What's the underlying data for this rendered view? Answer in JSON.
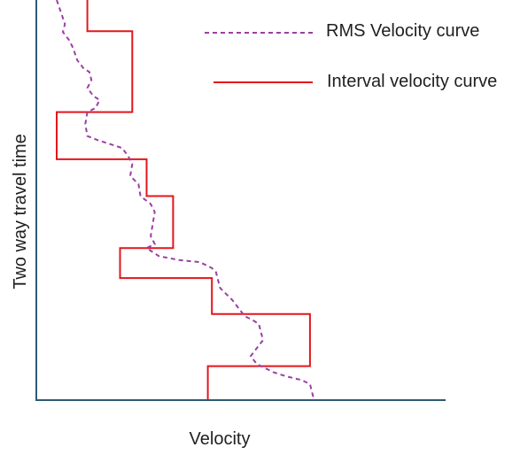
{
  "chart_data": {
    "type": "line",
    "title": "",
    "xlabel": "Velocity",
    "ylabel": "Two way travel time",
    "xlim": [
      0,
      100
    ],
    "ylim": [
      0,
      100
    ],
    "y_inverted": true,
    "ticks_shown": false,
    "grid": false,
    "legend_position": "top-right",
    "axis_color": "#2e5a72",
    "series": [
      {
        "name": "RMS Velocity curve",
        "style": "dashed",
        "color": "#9b3fa3",
        "points": [
          {
            "x": 5,
            "y": 0
          },
          {
            "x": 6,
            "y": 3
          },
          {
            "x": 7,
            "y": 6
          },
          {
            "x": 6.5,
            "y": 8
          },
          {
            "x": 8,
            "y": 10
          },
          {
            "x": 9,
            "y": 12
          },
          {
            "x": 10,
            "y": 15
          },
          {
            "x": 11.5,
            "y": 17
          },
          {
            "x": 13,
            "y": 18
          },
          {
            "x": 13.5,
            "y": 20
          },
          {
            "x": 12.5,
            "y": 22
          },
          {
            "x": 14,
            "y": 24
          },
          {
            "x": 15.5,
            "y": 25
          },
          {
            "x": 14.5,
            "y": 27
          },
          {
            "x": 12.5,
            "y": 28
          },
          {
            "x": 12,
            "y": 31
          },
          {
            "x": 12.5,
            "y": 34
          },
          {
            "x": 15,
            "y": 35
          },
          {
            "x": 18,
            "y": 36
          },
          {
            "x": 21,
            "y": 37
          },
          {
            "x": 22.5,
            "y": 39
          },
          {
            "x": 23.5,
            "y": 41
          },
          {
            "x": 23,
            "y": 44
          },
          {
            "x": 25,
            "y": 46
          },
          {
            "x": 25.5,
            "y": 49
          },
          {
            "x": 28,
            "y": 51
          },
          {
            "x": 29,
            "y": 53
          },
          {
            "x": 28.5,
            "y": 56
          },
          {
            "x": 28,
            "y": 59
          },
          {
            "x": 29,
            "y": 61
          },
          {
            "x": 27,
            "y": 62
          },
          {
            "x": 30,
            "y": 64
          },
          {
            "x": 35,
            "y": 65
          },
          {
            "x": 40,
            "y": 65.5
          },
          {
            "x": 43,
            "y": 67
          },
          {
            "x": 44,
            "y": 68
          },
          {
            "x": 44.5,
            "y": 70
          },
          {
            "x": 45,
            "y": 72
          },
          {
            "x": 48,
            "y": 75
          },
          {
            "x": 49.5,
            "y": 77
          },
          {
            "x": 51,
            "y": 79
          },
          {
            "x": 53,
            "y": 80
          },
          {
            "x": 54.5,
            "y": 81
          },
          {
            "x": 55,
            "y": 83
          },
          {
            "x": 55.5,
            "y": 85
          },
          {
            "x": 54,
            "y": 87
          },
          {
            "x": 52.5,
            "y": 89
          },
          {
            "x": 54,
            "y": 91
          },
          {
            "x": 56,
            "y": 92
          },
          {
            "x": 58,
            "y": 93
          },
          {
            "x": 61,
            "y": 94
          },
          {
            "x": 65,
            "y": 95
          },
          {
            "x": 67,
            "y": 96
          },
          {
            "x": 67.5,
            "y": 98
          },
          {
            "x": 68,
            "y": 100
          }
        ]
      },
      {
        "name": "Interval velocity curve",
        "style": "solid",
        "color": "#e3161c",
        "points": [
          {
            "x": 12.5,
            "y": 0
          },
          {
            "x": 12.5,
            "y": 7.8
          },
          {
            "x": 23.5,
            "y": 7.8
          },
          {
            "x": 23.5,
            "y": 28
          },
          {
            "x": 5,
            "y": 28
          },
          {
            "x": 5,
            "y": 39.8
          },
          {
            "x": 27,
            "y": 39.8
          },
          {
            "x": 27,
            "y": 49
          },
          {
            "x": 33.5,
            "y": 49
          },
          {
            "x": 33.5,
            "y": 62
          },
          {
            "x": 20.5,
            "y": 62
          },
          {
            "x": 20.5,
            "y": 69.5
          },
          {
            "x": 43,
            "y": 69.5
          },
          {
            "x": 43,
            "y": 78.5
          },
          {
            "x": 67,
            "y": 78.5
          },
          {
            "x": 67,
            "y": 91.5
          },
          {
            "x": 42,
            "y": 91.5
          },
          {
            "x": 42,
            "y": 100
          }
        ]
      }
    ]
  }
}
